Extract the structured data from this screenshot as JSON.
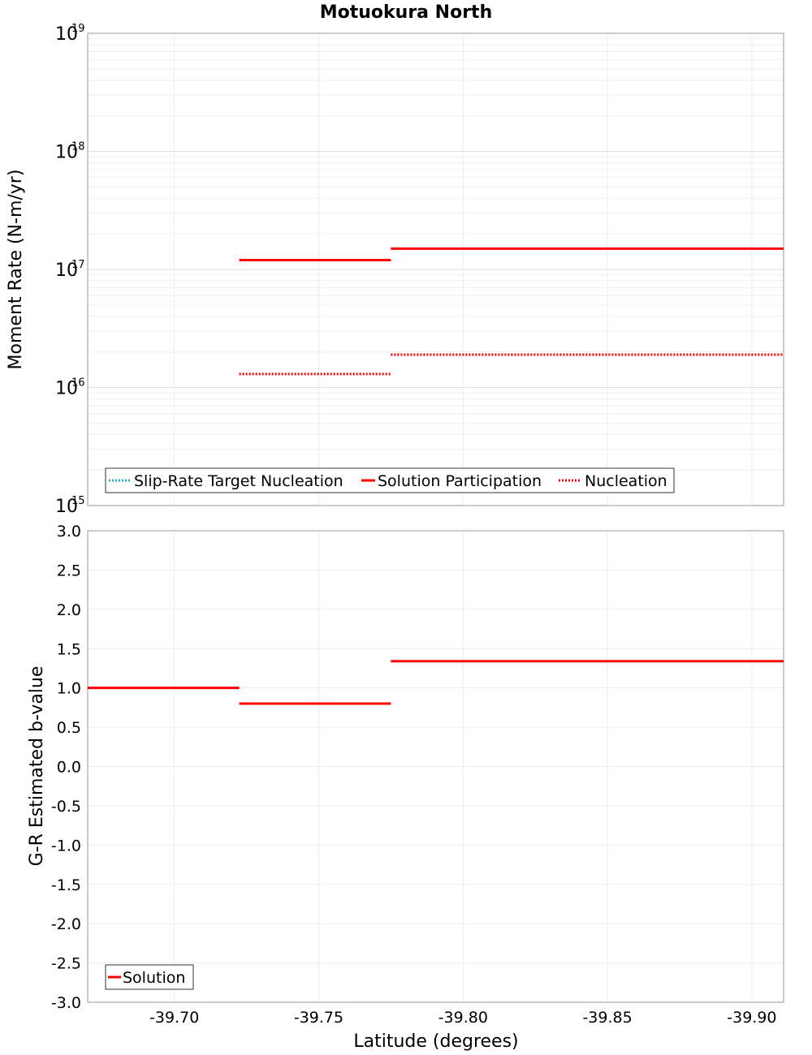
{
  "chart_data": [
    {
      "type": "line",
      "title": "Motuokura North",
      "xlabel": "",
      "ylabel": "Moment Rate (N-m/yr)",
      "yscale": "log",
      "ylim_exponents": [
        15,
        19
      ],
      "y_tick_base": "10",
      "y_tick_exponents": [
        "15",
        "16",
        "17",
        "18",
        "19"
      ],
      "xlim": [
        -39.67,
        -39.911
      ],
      "x_ticks": [
        -39.7,
        -39.75,
        -39.8,
        -39.85,
        -39.9
      ],
      "legend_location": "bottom-left",
      "series": [
        {
          "name": "Slip-Rate Target Nucleation",
          "color": "#2aa5c8",
          "style": "dotted",
          "segments": []
        },
        {
          "name": "Solution Participation",
          "color": "#ff0000",
          "style": "solid",
          "segments": [
            {
              "x0": -39.7225,
              "x1": -39.775,
              "y": 1.2e+17
            },
            {
              "x0": -39.775,
              "x1": -39.911,
              "y": 1.5e+17
            }
          ]
        },
        {
          "name": "Nucleation",
          "color": "#ff0000",
          "style": "dotted",
          "segments": [
            {
              "x0": -39.7225,
              "x1": -39.775,
              "y": 1.3e+16
            },
            {
              "x0": -39.775,
              "x1": -39.911,
              "y": 1.9e+16
            }
          ]
        }
      ]
    },
    {
      "type": "line",
      "title": "",
      "xlabel": "Latitude (degrees)",
      "ylabel": "G-R Estimated b-value",
      "yscale": "linear",
      "ylim": [
        -3.0,
        3.0
      ],
      "y_ticks": [
        3.0,
        2.5,
        2.0,
        1.5,
        1.0,
        0.5,
        0.0,
        -0.5,
        -1.0,
        -1.5,
        -2.0,
        -2.5,
        -3.0
      ],
      "xlim": [
        -39.67,
        -39.911
      ],
      "x_ticks": [
        -39.7,
        -39.75,
        -39.8,
        -39.85,
        -39.9
      ],
      "legend_location": "bottom-left",
      "series": [
        {
          "name": "Solution",
          "color": "#ff0000",
          "style": "solid",
          "segments": [
            {
              "x0": -39.67,
              "x1": -39.7225,
              "y": 1.0
            },
            {
              "x0": -39.7225,
              "x1": -39.775,
              "y": 0.8
            },
            {
              "x0": -39.775,
              "x1": -39.911,
              "y": 1.34
            }
          ]
        }
      ]
    }
  ]
}
